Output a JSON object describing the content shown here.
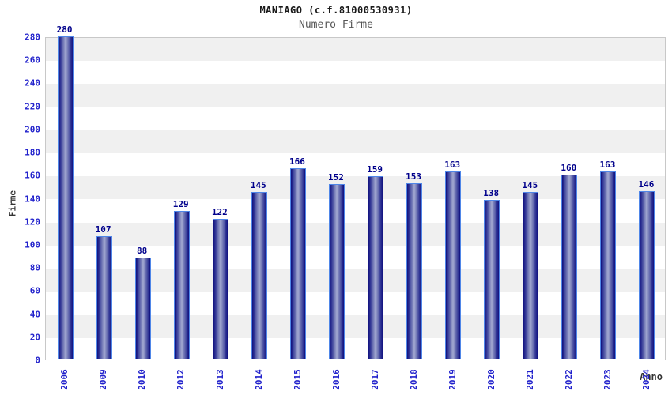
{
  "header": {
    "title": "MANIAGO (c.f.81000530931)",
    "subtitle": "Numero Firme"
  },
  "chart_data": {
    "type": "bar",
    "title": "MANIAGO (c.f.81000530931)",
    "subtitle": "Numero Firme",
    "xlabel": "Anno",
    "ylabel": "Firme",
    "categories": [
      "2006",
      "2009",
      "2010",
      "2012",
      "2013",
      "2014",
      "2015",
      "2016",
      "2017",
      "2018",
      "2019",
      "2020",
      "2021",
      "2022",
      "2023",
      "2024"
    ],
    "values": [
      280,
      107,
      88,
      129,
      122,
      145,
      166,
      152,
      159,
      153,
      163,
      138,
      145,
      160,
      163,
      146
    ],
    "ylim": [
      0,
      280
    ],
    "ytick_step": 20,
    "grid": "horizontal-bands",
    "legend": "none",
    "value_labels_shown": true
  },
  "colors": {
    "band_gray": "#f0f0f0",
    "band_white": "#ffffff",
    "plot_border": "#c8c8c8",
    "bar_edge": "#10107e",
    "bar_center": "#a4aad2",
    "bar_outline": "#4f86e8",
    "tick_label_blue": "#2222cc",
    "value_label_navy": "#00008b",
    "title_color": "#1a1a1a",
    "subtitle_color": "#555555",
    "axis_title_color": "#333333"
  }
}
